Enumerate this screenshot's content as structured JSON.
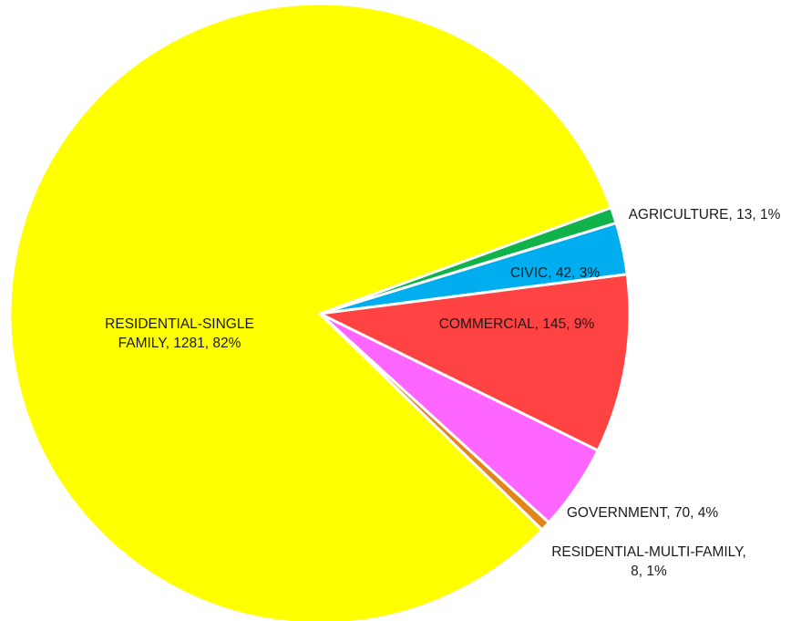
{
  "chart_data": {
    "type": "pie",
    "title": "",
    "slices": [
      {
        "name": "AGRICULTURE",
        "value": 13,
        "percent": "1%",
        "color": "#12B24B"
      },
      {
        "name": "CIVIC",
        "value": 42,
        "percent": "3%",
        "color": "#00AEEF"
      },
      {
        "name": "COMMERCIAL",
        "value": 145,
        "percent": "9%",
        "color": "#FF4242"
      },
      {
        "name": "GOVERNMENT",
        "value": 70,
        "percent": "4%",
        "color": "#FF66FF"
      },
      {
        "name": "RESIDENTIAL-MULTI-FAMILY",
        "value": 8,
        "percent": "1%",
        "color": "#E0861C"
      },
      {
        "name": "RESIDENTIAL-SINGLE FAMILY",
        "value": 1281,
        "percent": "82%",
        "color": "#FFFF00"
      }
    ],
    "labels": [
      {
        "lines": [
          "AGRICULTURE, 13, 1%"
        ]
      },
      {
        "lines": [
          "CIVIC, 42, 3%"
        ]
      },
      {
        "lines": [
          "COMMERCIAL, 145, 9%"
        ]
      },
      {
        "lines": [
          "GOVERNMENT, 70, 4%"
        ]
      },
      {
        "lines": [
          "RESIDENTIAL-MULTI-FAMILY,",
          "8, 1%"
        ]
      },
      {
        "lines": [
          "RESIDENTIAL-SINGLE",
          "FAMILY, 1281, 82%"
        ]
      }
    ],
    "legend": "none"
  }
}
